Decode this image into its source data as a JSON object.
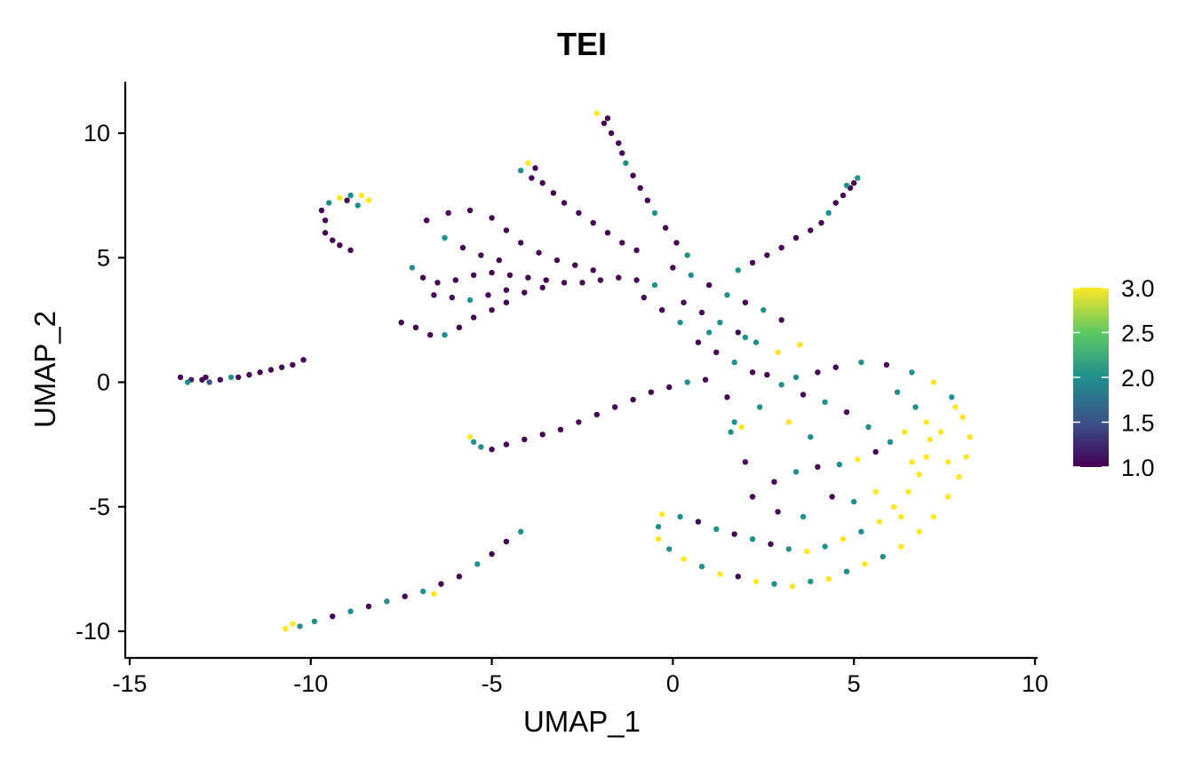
{
  "chart_data": {
    "type": "scatter",
    "title": "TEI",
    "xlabel": "UMAP_1",
    "ylabel": "UMAP_2",
    "xlim": [
      -15,
      10
    ],
    "ylim": [
      -10.5,
      12
    ],
    "x_ticks": [
      -15,
      -10,
      -5,
      0,
      5,
      10
    ],
    "x_tick_labels": [
      "-15",
      "-10",
      "-5",
      "0",
      "5",
      "10"
    ],
    "y_ticks": [
      -10,
      -5,
      0,
      5,
      10
    ],
    "y_tick_labels": [
      "-10",
      "-5",
      "0",
      "5",
      "10"
    ],
    "grid": false,
    "legend": {
      "placement": "right",
      "type": "colorbar",
      "min": 1.0,
      "max": 3.0,
      "ticks": [
        1.0,
        1.5,
        2.0,
        2.5,
        3.0
      ],
      "tick_labels": [
        "1.0",
        "1.5",
        "2.0",
        "2.5",
        "3.0"
      ],
      "colors": [
        "#440154",
        "#3b528b",
        "#21908c",
        "#5dc863",
        "#fde725"
      ]
    },
    "points": [
      [
        -13.6,
        0.2,
        1.0
      ],
      [
        -13.3,
        0.1,
        1.2
      ],
      [
        -13.0,
        0.1,
        1.0
      ],
      [
        -12.8,
        0.0,
        1.5
      ],
      [
        -12.5,
        0.1,
        1.0
      ],
      [
        -12.2,
        0.2,
        2.0
      ],
      [
        -12.0,
        0.2,
        1.0
      ],
      [
        -11.7,
        0.3,
        1.0
      ],
      [
        -11.4,
        0.4,
        1.0
      ],
      [
        -11.1,
        0.5,
        1.0
      ],
      [
        -10.8,
        0.6,
        1.0
      ],
      [
        -10.5,
        0.7,
        1.0
      ],
      [
        -10.2,
        0.9,
        1.0
      ],
      [
        -13.4,
        0.0,
        2.0
      ],
      [
        -12.9,
        0.2,
        1.0
      ],
      [
        -9.6,
        6.5,
        1.0
      ],
      [
        -9.7,
        6.9,
        1.0
      ],
      [
        -9.5,
        7.2,
        2.0
      ],
      [
        -9.2,
        7.4,
        3.0
      ],
      [
        -8.9,
        7.5,
        2.0
      ],
      [
        -8.6,
        7.5,
        3.0
      ],
      [
        -8.4,
        7.3,
        3.0
      ],
      [
        -9.6,
        6.0,
        1.0
      ],
      [
        -9.4,
        5.7,
        1.0
      ],
      [
        -9.2,
        5.5,
        1.0
      ],
      [
        -8.9,
        5.3,
        1.0
      ],
      [
        -9.0,
        7.3,
        1.0
      ],
      [
        -8.7,
        7.1,
        2.0
      ],
      [
        -7.5,
        2.4,
        1.0
      ],
      [
        -7.1,
        2.2,
        1.0
      ],
      [
        -6.7,
        1.9,
        1.0
      ],
      [
        -6.3,
        1.9,
        2.0
      ],
      [
        -5.9,
        2.2,
        1.0
      ],
      [
        -5.5,
        2.6,
        1.0
      ],
      [
        -5.0,
        2.9,
        1.0
      ],
      [
        -4.6,
        3.2,
        1.0
      ],
      [
        -4.1,
        3.6,
        1.0
      ],
      [
        -3.6,
        3.8,
        1.0
      ],
      [
        -7.2,
        4.6,
        2.0
      ],
      [
        -6.9,
        4.2,
        1.0
      ],
      [
        -6.5,
        4.0,
        1.0
      ],
      [
        -6.0,
        4.1,
        1.0
      ],
      [
        -5.5,
        4.3,
        1.0
      ],
      [
        -5.0,
        4.4,
        1.0
      ],
      [
        -4.5,
        4.3,
        1.0
      ],
      [
        -4.0,
        4.2,
        1.0
      ],
      [
        -3.5,
        4.1,
        1.0
      ],
      [
        -3.0,
        4.0,
        1.0
      ],
      [
        -2.5,
        4.0,
        1.0
      ],
      [
        -2.0,
        4.1,
        1.0
      ],
      [
        -1.5,
        4.2,
        1.0
      ],
      [
        -1.0,
        4.1,
        1.0
      ],
      [
        -0.5,
        3.9,
        2.0
      ],
      [
        -6.8,
        6.5,
        1.0
      ],
      [
        -6.2,
        6.8,
        1.0
      ],
      [
        -5.6,
        6.9,
        1.0
      ],
      [
        -5.0,
        6.6,
        1.0
      ],
      [
        -4.6,
        6.1,
        1.0
      ],
      [
        -4.2,
        5.6,
        1.0
      ],
      [
        -3.7,
        5.2,
        1.0
      ],
      [
        -3.2,
        4.9,
        1.0
      ],
      [
        -2.7,
        4.7,
        1.0
      ],
      [
        -2.2,
        4.5,
        1.0
      ],
      [
        -6.3,
        5.8,
        2.0
      ],
      [
        -5.8,
        5.4,
        1.0
      ],
      [
        -5.3,
        5.1,
        1.0
      ],
      [
        -4.8,
        4.9,
        1.0
      ],
      [
        -6.6,
        3.5,
        1.0
      ],
      [
        -6.1,
        3.4,
        1.0
      ],
      [
        -5.6,
        3.3,
        2.0
      ],
      [
        -5.1,
        3.5,
        1.0
      ],
      [
        -4.6,
        3.7,
        1.0
      ],
      [
        -4.2,
        8.5,
        2.0
      ],
      [
        -3.9,
        8.2,
        1.0
      ],
      [
        -3.6,
        8.0,
        1.0
      ],
      [
        -3.3,
        7.6,
        1.0
      ],
      [
        -3.0,
        7.2,
        1.0
      ],
      [
        -2.6,
        6.8,
        1.0
      ],
      [
        -2.2,
        6.4,
        1.0
      ],
      [
        -1.8,
        6.0,
        1.0
      ],
      [
        -1.4,
        5.6,
        1.0
      ],
      [
        -1.0,
        5.3,
        1.0
      ],
      [
        -4.0,
        8.8,
        3.0
      ],
      [
        -3.8,
        8.6,
        1.0
      ],
      [
        -2.1,
        10.8,
        3.0
      ],
      [
        -1.9,
        10.4,
        1.0
      ],
      [
        -1.7,
        10.0,
        1.0
      ],
      [
        -1.5,
        9.6,
        1.0
      ],
      [
        -1.4,
        9.2,
        1.0
      ],
      [
        -1.3,
        8.8,
        2.0
      ],
      [
        -1.1,
        8.3,
        1.0
      ],
      [
        -0.9,
        7.8,
        1.0
      ],
      [
        -0.7,
        7.3,
        1.0
      ],
      [
        -0.5,
        6.8,
        2.0
      ],
      [
        -0.2,
        6.2,
        1.0
      ],
      [
        0.1,
        5.6,
        1.0
      ],
      [
        0.4,
        5.1,
        2.0
      ],
      [
        -1.8,
        10.6,
        1.0
      ],
      [
        5.1,
        8.2,
        2.0
      ],
      [
        4.9,
        7.8,
        1.0
      ],
      [
        4.7,
        7.5,
        1.0
      ],
      [
        4.5,
        7.2,
        1.0
      ],
      [
        4.3,
        6.8,
        2.0
      ],
      [
        4.1,
        6.4,
        1.0
      ],
      [
        3.8,
        6.1,
        1.0
      ],
      [
        3.4,
        5.8,
        1.0
      ],
      [
        3.0,
        5.4,
        1.0
      ],
      [
        2.6,
        5.1,
        1.0
      ],
      [
        2.2,
        4.8,
        1.0
      ],
      [
        1.8,
        4.5,
        2.0
      ],
      [
        5.0,
        8.0,
        1.0
      ],
      [
        4.8,
        7.9,
        2.0
      ],
      [
        0.0,
        4.6,
        1.0
      ],
      [
        0.5,
        4.3,
        2.0
      ],
      [
        1.0,
        3.9,
        1.0
      ],
      [
        1.5,
        3.5,
        2.0
      ],
      [
        2.0,
        3.2,
        1.0
      ],
      [
        2.5,
        2.9,
        2.0
      ],
      [
        3.0,
        2.5,
        1.0
      ],
      [
        0.3,
        3.2,
        1.0
      ],
      [
        0.8,
        2.8,
        1.0
      ],
      [
        1.3,
        2.4,
        2.0
      ],
      [
        1.8,
        2.0,
        1.0
      ],
      [
        2.3,
        1.6,
        2.0
      ],
      [
        -0.8,
        3.4,
        1.0
      ],
      [
        -0.3,
        2.9,
        1.0
      ],
      [
        0.2,
        2.4,
        2.0
      ],
      [
        0.7,
        1.6,
        1.0
      ],
      [
        1.2,
        1.2,
        1.0
      ],
      [
        1.7,
        0.8,
        2.0
      ],
      [
        2.2,
        0.4,
        1.0
      ],
      [
        1.0,
        2.0,
        2.0
      ],
      [
        -5.6,
        -2.2,
        3.0
      ],
      [
        -5.3,
        -2.6,
        2.0
      ],
      [
        -5.0,
        -2.7,
        1.0
      ],
      [
        -4.6,
        -2.5,
        1.0
      ],
      [
        -4.1,
        -2.3,
        1.0
      ],
      [
        -3.6,
        -2.1,
        1.0
      ],
      [
        -3.1,
        -1.9,
        1.0
      ],
      [
        -2.6,
        -1.6,
        1.0
      ],
      [
        -2.1,
        -1.3,
        1.0
      ],
      [
        -1.6,
        -1.0,
        1.0
      ],
      [
        -1.1,
        -0.7,
        1.0
      ],
      [
        -0.6,
        -0.4,
        1.0
      ],
      [
        -0.1,
        -0.2,
        1.0
      ],
      [
        0.4,
        0.0,
        2.0
      ],
      [
        0.9,
        0.1,
        1.0
      ],
      [
        -5.5,
        -2.4,
        2.0
      ],
      [
        -10.7,
        -9.9,
        3.0
      ],
      [
        -10.3,
        -9.8,
        2.0
      ],
      [
        -9.9,
        -9.6,
        2.0
      ],
      [
        -9.4,
        -9.4,
        1.0
      ],
      [
        -8.9,
        -9.2,
        2.0
      ],
      [
        -8.4,
        -9.0,
        1.0
      ],
      [
        -7.9,
        -8.8,
        2.0
      ],
      [
        -7.4,
        -8.6,
        1.0
      ],
      [
        -6.9,
        -8.4,
        2.0
      ],
      [
        -6.4,
        -8.1,
        1.0
      ],
      [
        -5.9,
        -7.8,
        1.0
      ],
      [
        -5.4,
        -7.3,
        2.0
      ],
      [
        -5.0,
        -6.9,
        1.0
      ],
      [
        -4.6,
        -6.4,
        1.0
      ],
      [
        -4.2,
        -6.0,
        2.0
      ],
      [
        -10.5,
        -9.7,
        3.0
      ],
      [
        -6.6,
        -8.5,
        3.0
      ],
      [
        1.6,
        -2.0,
        2.0
      ],
      [
        1.9,
        -1.8,
        3.0
      ],
      [
        1.7,
        -1.6,
        2.0
      ],
      [
        -0.3,
        -5.3,
        3.0
      ],
      [
        -0.4,
        -5.8,
        2.0
      ],
      [
        -0.4,
        -6.3,
        3.0
      ],
      [
        -0.1,
        -6.7,
        2.0
      ],
      [
        0.3,
        -7.1,
        3.0
      ],
      [
        0.8,
        -7.4,
        2.0
      ],
      [
        1.3,
        -7.7,
        3.0
      ],
      [
        1.8,
        -7.8,
        1.0
      ],
      [
        2.3,
        -8.0,
        3.0
      ],
      [
        2.8,
        -8.1,
        2.0
      ],
      [
        3.3,
        -8.2,
        3.0
      ],
      [
        3.8,
        -8.0,
        2.0
      ],
      [
        4.3,
        -7.9,
        3.0
      ],
      [
        4.8,
        -7.6,
        2.0
      ],
      [
        5.3,
        -7.3,
        3.0
      ],
      [
        5.8,
        -7.0,
        2.0
      ],
      [
        6.3,
        -6.6,
        3.0
      ],
      [
        6.8,
        -6.0,
        3.0
      ],
      [
        7.2,
        -5.4,
        3.0
      ],
      [
        7.6,
        -4.6,
        3.0
      ],
      [
        7.9,
        -3.8,
        3.0
      ],
      [
        8.1,
        -3.0,
        3.0
      ],
      [
        8.2,
        -2.2,
        3.0
      ],
      [
        8.0,
        -1.4,
        3.0
      ],
      [
        7.7,
        -0.6,
        2.0
      ],
      [
        7.2,
        0.0,
        3.0
      ],
      [
        6.6,
        0.4,
        2.0
      ],
      [
        5.9,
        0.7,
        1.0
      ],
      [
        5.2,
        0.8,
        2.0
      ],
      [
        4.5,
        0.6,
        1.0
      ],
      [
        0.2,
        -5.4,
        2.0
      ],
      [
        0.7,
        -5.6,
        1.0
      ],
      [
        1.2,
        -5.9,
        2.0
      ],
      [
        1.7,
        -6.1,
        1.0
      ],
      [
        2.2,
        -6.3,
        2.0
      ],
      [
        2.7,
        -6.5,
        1.0
      ],
      [
        3.2,
        -6.7,
        2.0
      ],
      [
        3.7,
        -6.8,
        3.0
      ],
      [
        4.2,
        -6.6,
        2.0
      ],
      [
        4.7,
        -6.3,
        3.0
      ],
      [
        5.2,
        -6.0,
        2.0
      ],
      [
        5.7,
        -5.6,
        3.0
      ],
      [
        6.1,
        -5.0,
        3.0
      ],
      [
        6.5,
        -4.4,
        3.0
      ],
      [
        6.8,
        -3.7,
        3.0
      ],
      [
        7.0,
        -3.0,
        3.0
      ],
      [
        7.1,
        -2.3,
        3.0
      ],
      [
        7.0,
        -1.6,
        3.0
      ],
      [
        6.7,
        -1.0,
        2.0
      ],
      [
        6.2,
        -0.4,
        2.0
      ],
      [
        2.2,
        -4.6,
        1.0
      ],
      [
        2.8,
        -4.0,
        1.0
      ],
      [
        3.4,
        -3.6,
        2.0
      ],
      [
        4.0,
        -3.4,
        1.0
      ],
      [
        4.6,
        -3.3,
        2.0
      ],
      [
        5.1,
        -3.1,
        3.0
      ],
      [
        5.6,
        -2.8,
        1.0
      ],
      [
        6.0,
        -2.4,
        2.0
      ],
      [
        5.4,
        -1.8,
        2.0
      ],
      [
        4.8,
        -1.2,
        1.0
      ],
      [
        4.2,
        -0.8,
        2.0
      ],
      [
        3.6,
        -0.5,
        1.0
      ],
      [
        3.0,
        -0.1,
        2.0
      ],
      [
        2.6,
        0.3,
        1.0
      ],
      [
        3.2,
        -1.6,
        3.0
      ],
      [
        3.8,
        -2.2,
        2.0
      ],
      [
        4.4,
        -4.6,
        1.0
      ],
      [
        5.0,
        -4.8,
        2.0
      ],
      [
        5.6,
        -4.4,
        3.0
      ],
      [
        3.6,
        -5.4,
        2.0
      ],
      [
        2.9,
        -5.2,
        1.0
      ],
      [
        6.4,
        -2.0,
        3.0
      ],
      [
        6.6,
        -3.2,
        3.0
      ],
      [
        6.3,
        -5.4,
        3.0
      ],
      [
        7.4,
        -2.0,
        3.0
      ],
      [
        7.6,
        -3.2,
        3.0
      ],
      [
        7.8,
        -1.0,
        3.0
      ],
      [
        3.4,
        0.2,
        2.0
      ],
      [
        4.0,
        0.4,
        1.0
      ],
      [
        2.0,
        -3.2,
        1.0
      ],
      [
        1.5,
        -0.6,
        1.0
      ],
      [
        2.4,
        -1.0,
        2.0
      ],
      [
        2.9,
        1.2,
        3.0
      ],
      [
        3.5,
        1.5,
        3.0
      ],
      [
        2.0,
        1.8,
        2.0
      ]
    ]
  }
}
